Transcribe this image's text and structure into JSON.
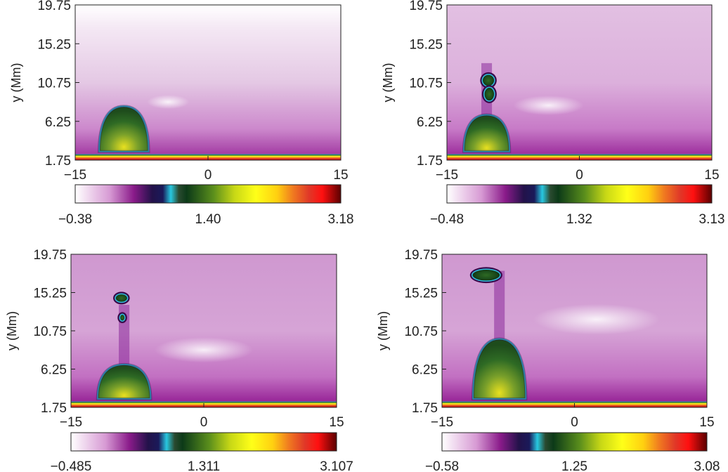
{
  "chart_data": [
    {
      "type": "heatmap",
      "panel": "top-left",
      "ylabel": "y (Mm)",
      "x_ticks": [
        "−15",
        "0",
        "15"
      ],
      "y_ticks": [
        "1.75",
        "6.25",
        "10.75",
        "15.25",
        "19.75"
      ],
      "xlim": [
        -15,
        15
      ],
      "ylim": [
        1.75,
        19.75
      ],
      "colorbar_ticks": [
        "−0.38",
        "1.40",
        "3.18"
      ],
      "colorbar_range": [
        -0.38,
        3.18
      ],
      "features": {
        "dome": {
          "x_center": -9.5,
          "half_width": 2.8,
          "top_y": 8.0
        },
        "blobs": []
      }
    },
    {
      "type": "heatmap",
      "panel": "top-right",
      "ylabel": "y (Mm)",
      "x_ticks": [
        "−15",
        "0",
        "15"
      ],
      "y_ticks": [
        "1.75",
        "6.25",
        "10.75",
        "15.25",
        "19.75"
      ],
      "xlim": [
        -15,
        15
      ],
      "ylim": [
        1.75,
        19.75
      ],
      "colorbar_ticks": [
        "−0.48",
        "1.32",
        "3.13"
      ],
      "colorbar_range": [
        -0.48,
        3.13
      ],
      "features": {
        "dome": {
          "x_center": -10.5,
          "half_width": 2.6,
          "top_y": 7.0
        },
        "blobs": [
          {
            "x": -10.3,
            "y": 11.0,
            "rx": 0.7,
            "ry": 0.7
          },
          {
            "x": -10.2,
            "y": 9.4,
            "rx": 0.6,
            "ry": 0.8
          }
        ]
      }
    },
    {
      "type": "heatmap",
      "panel": "bottom-left",
      "ylabel": "y (Mm)",
      "x_ticks": [
        "−15",
        "0",
        "15"
      ],
      "y_ticks": [
        "1.75",
        "6.25",
        "10.75",
        "15.25",
        "19.75"
      ],
      "xlim": [
        -15,
        15
      ],
      "ylim": [
        1.75,
        19.75
      ],
      "colorbar_ticks": [
        "−0.485",
        "1.311",
        "3.107"
      ],
      "colorbar_range": [
        -0.485,
        3.107
      ],
      "features": {
        "dome": {
          "x_center": -9.0,
          "half_width": 3.0,
          "top_y": 6.8
        },
        "blobs": [
          {
            "x": -9.3,
            "y": 14.6,
            "rx": 0.7,
            "ry": 0.5
          },
          {
            "x": -9.2,
            "y": 12.3,
            "rx": 0.3,
            "ry": 0.4
          }
        ]
      }
    },
    {
      "type": "heatmap",
      "panel": "bottom-right",
      "ylabel": "y (Mm)",
      "x_ticks": [
        "−15",
        "0",
        "15"
      ],
      "y_ticks": [
        "1.75",
        "6.25",
        "10.75",
        "15.25",
        "19.75"
      ],
      "xlim": [
        -15,
        15
      ],
      "ylim": [
        1.75,
        19.75
      ],
      "colorbar_ticks": [
        "−0.58",
        "1.25",
        "3.08"
      ],
      "colorbar_range": [
        -0.58,
        3.08
      ],
      "features": {
        "dome": {
          "x_center": -8.5,
          "half_width": 3.0,
          "top_y": 9.8
        },
        "blobs": [
          {
            "x": -10.0,
            "y": 17.3,
            "rx": 1.6,
            "ry": 0.7
          }
        ]
      }
    }
  ]
}
